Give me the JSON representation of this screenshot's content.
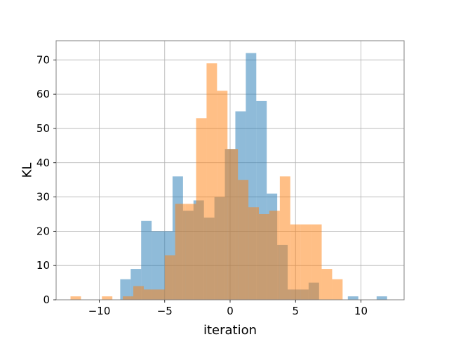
{
  "chart_data": {
    "type": "bar",
    "xlabel": "iteration",
    "ylabel": "KL",
    "xlim": [
      -13.3,
      13.3
    ],
    "ylim": [
      0,
      75.6
    ],
    "xticks": [
      -10,
      -5,
      0,
      5,
      10
    ],
    "yticks": [
      0,
      10,
      20,
      30,
      40,
      50,
      60,
      70
    ],
    "xtick_labels": [
      "−10",
      "−5",
      "0",
      "5",
      "10"
    ],
    "ytick_labels": [
      "0",
      "10",
      "20",
      "30",
      "40",
      "50",
      "60",
      "70"
    ],
    "grid": true,
    "series": [
      {
        "color": "#1f77b4",
        "alpha": 0.5,
        "bins": [
          {
            "x0": -8.4,
            "x1": -7.6,
            "y": 6
          },
          {
            "x0": -7.6,
            "x1": -6.8,
            "y": 9
          },
          {
            "x0": -6.8,
            "x1": -6.0,
            "y": 23
          },
          {
            "x0": -6.0,
            "x1": -5.2,
            "y": 20
          },
          {
            "x0": -5.2,
            "x1": -4.4,
            "y": 20
          },
          {
            "x0": -4.4,
            "x1": -3.6,
            "y": 36
          },
          {
            "x0": -3.6,
            "x1": -2.8,
            "y": 26
          },
          {
            "x0": -2.8,
            "x1": -2.0,
            "y": 29
          },
          {
            "x0": -2.0,
            "x1": -1.2,
            "y": 24
          },
          {
            "x0": -1.2,
            "x1": -0.4,
            "y": 30
          },
          {
            "x0": -0.4,
            "x1": 0.4,
            "y": 44
          },
          {
            "x0": 0.4,
            "x1": 1.2,
            "y": 55
          },
          {
            "x0": 1.2,
            "x1": 2.0,
            "y": 72
          },
          {
            "x0": 2.0,
            "x1": 2.8,
            "y": 58
          },
          {
            "x0": 2.8,
            "x1": 3.6,
            "y": 31
          },
          {
            "x0": 3.6,
            "x1": 4.4,
            "y": 16
          },
          {
            "x0": 4.4,
            "x1": 5.2,
            "y": 3
          },
          {
            "x0": 5.2,
            "x1": 6.0,
            "y": 3
          },
          {
            "x0": 6.0,
            "x1": 6.8,
            "y": 5
          },
          {
            "x0": 9.0,
            "x1": 9.8,
            "y": 1
          },
          {
            "x0": 11.2,
            "x1": 12.0,
            "y": 1
          }
        ]
      },
      {
        "color": "#ff7f0e",
        "alpha": 0.5,
        "bins": [
          {
            "x0": -12.2,
            "x1": -11.4,
            "y": 1
          },
          {
            "x0": -9.8,
            "x1": -9.0,
            "y": 1
          },
          {
            "x0": -8.2,
            "x1": -7.4,
            "y": 1
          },
          {
            "x0": -7.4,
            "x1": -6.6,
            "y": 4
          },
          {
            "x0": -6.6,
            "x1": -5.8,
            "y": 3
          },
          {
            "x0": -5.8,
            "x1": -5.0,
            "y": 3
          },
          {
            "x0": -5.0,
            "x1": -4.2,
            "y": 13
          },
          {
            "x0": -4.2,
            "x1": -3.4,
            "y": 28
          },
          {
            "x0": -3.4,
            "x1": -2.6,
            "y": 28
          },
          {
            "x0": -2.6,
            "x1": -1.8,
            "y": 53
          },
          {
            "x0": -1.8,
            "x1": -1.0,
            "y": 69
          },
          {
            "x0": -1.0,
            "x1": -0.2,
            "y": 61
          },
          {
            "x0": -0.2,
            "x1": 0.6,
            "y": 44
          },
          {
            "x0": 0.6,
            "x1": 1.4,
            "y": 35
          },
          {
            "x0": 1.4,
            "x1": 2.2,
            "y": 27
          },
          {
            "x0": 2.2,
            "x1": 3.0,
            "y": 25
          },
          {
            "x0": 3.0,
            "x1": 3.8,
            "y": 26
          },
          {
            "x0": 3.8,
            "x1": 4.6,
            "y": 36
          },
          {
            "x0": 4.6,
            "x1": 5.4,
            "y": 22
          },
          {
            "x0": 5.4,
            "x1": 6.2,
            "y": 22
          },
          {
            "x0": 6.2,
            "x1": 7.0,
            "y": 22
          },
          {
            "x0": 7.0,
            "x1": 7.8,
            "y": 9
          },
          {
            "x0": 7.8,
            "x1": 8.6,
            "y": 6
          }
        ]
      }
    ]
  }
}
